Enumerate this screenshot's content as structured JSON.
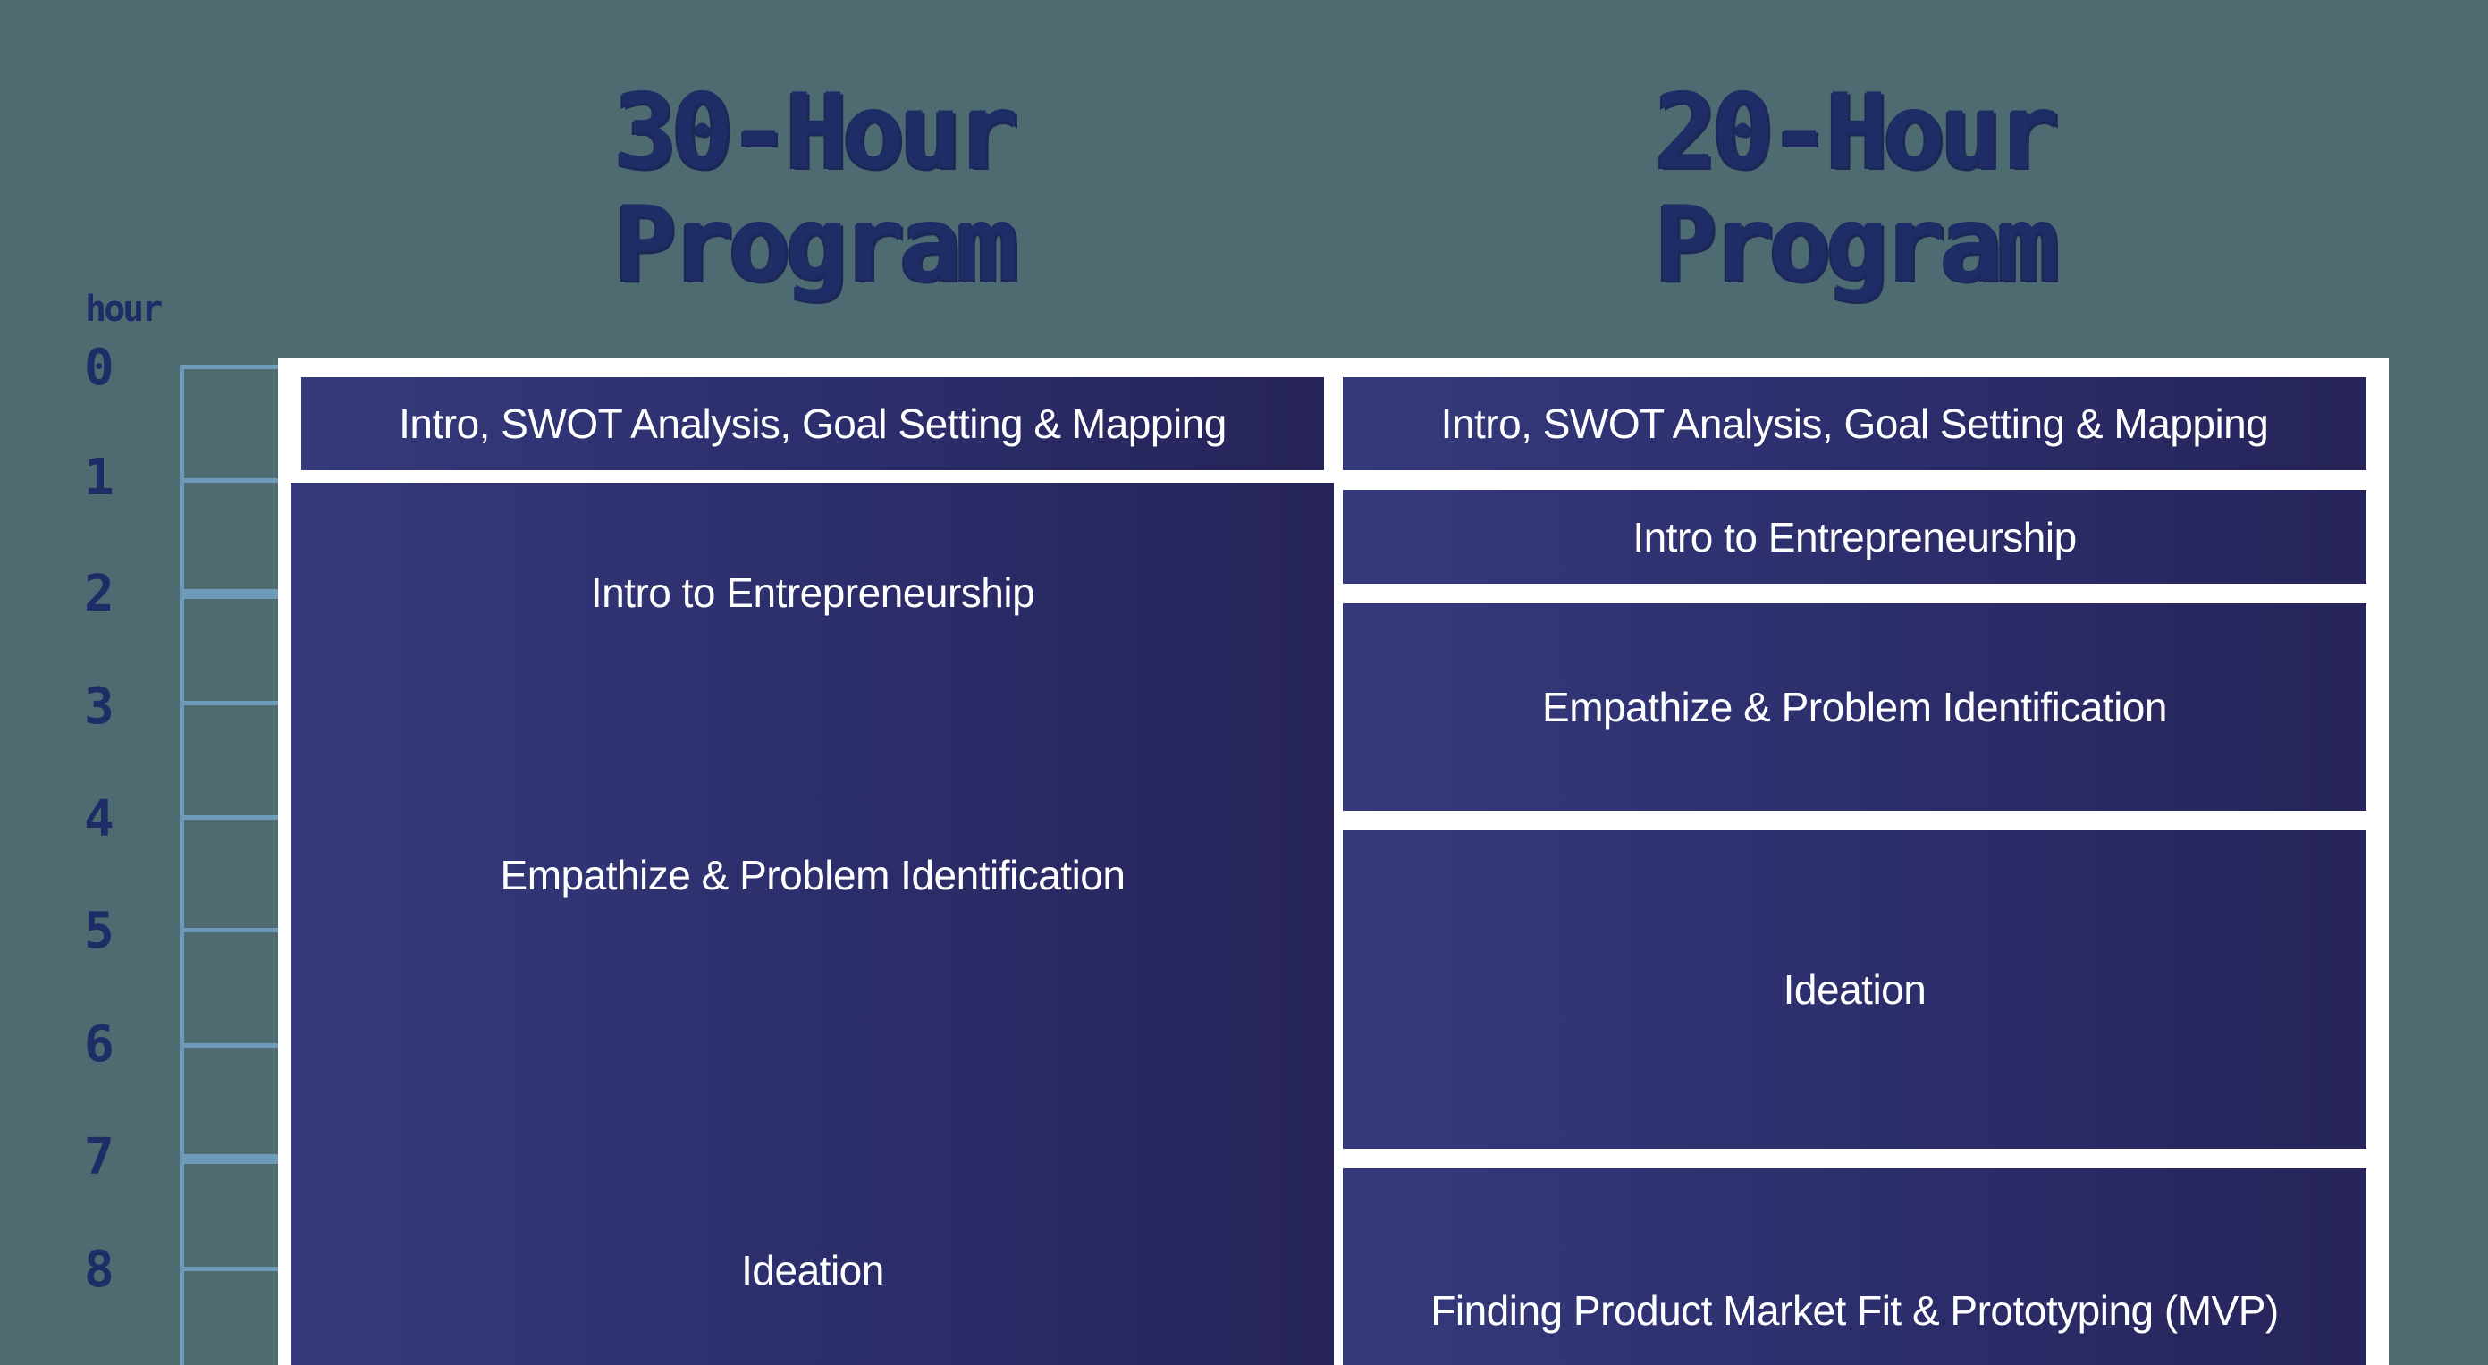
{
  "program_30": {
    "title_line1": "30-Hour",
    "title_line2": "Program",
    "modules": [
      {
        "label": "Intro, SWOT Analysis, Goal Setting & Mapping"
      },
      {
        "label": "Intro to Entrepreneurship"
      },
      {
        "label": "Empathize & Problem Identification"
      },
      {
        "label": "Ideation"
      }
    ]
  },
  "program_20": {
    "title_line1": "20-Hour",
    "title_line2": "Program",
    "modules": [
      {
        "label": "Intro, SWOT Analysis, Goal Setting & Mapping"
      },
      {
        "label": "Intro to Entrepreneurship"
      },
      {
        "label": "Empathize & Problem Identification"
      },
      {
        "label": "Ideation"
      },
      {
        "label": "Finding Product Market Fit & Prototyping (MVP)"
      }
    ]
  },
  "hour_axis": {
    "title": "hour",
    "ticks": [
      "0",
      "1",
      "2",
      "3",
      "4",
      "5",
      "6",
      "7",
      "8"
    ]
  },
  "colors": {
    "background": "#4e6b71",
    "block": "#2c2d6b",
    "title": "#1f2d66",
    "ladder": "#6e9bba",
    "frame": "#ffffff"
  }
}
